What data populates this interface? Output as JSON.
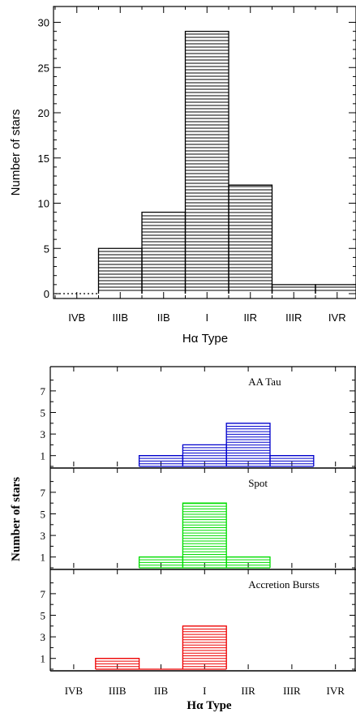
{
  "chart_data": [
    {
      "type": "bar",
      "categories": [
        "IVB",
        "IIIB",
        "IIB",
        "I",
        "IIR",
        "IIIR",
        "IVR"
      ],
      "values": [
        0,
        5,
        9,
        29,
        12,
        1,
        1
      ],
      "xlabel": "Hα  Type",
      "ylabel": "Number of stars",
      "ylim": [
        0,
        30
      ],
      "yticks": [
        0,
        5,
        10,
        15,
        20,
        25,
        30
      ],
      "color": "#000000",
      "fill": "horizontal-hatch"
    },
    {
      "type": "bar",
      "categories": [
        "IVB",
        "IIIB",
        "IIB",
        "I",
        "IIR",
        "IIIR",
        "IVR"
      ],
      "xlabel": "Hα  Type",
      "ylabel": "Number of stars",
      "ylim": [
        0,
        8
      ],
      "yticks": [
        1,
        3,
        5,
        7
      ],
      "panels": [
        {
          "annotation": "AA Tau",
          "color": "#0000cc",
          "values": [
            0,
            0,
            1,
            2,
            4,
            1,
            0
          ]
        },
        {
          "annotation": "Spot",
          "color": "#00dd00",
          "values": [
            0,
            0,
            1,
            6,
            1,
            0,
            0
          ]
        },
        {
          "annotation": "Accretion Bursts",
          "color": "#ee0000",
          "values": [
            0,
            1,
            0,
            4,
            0,
            0,
            0
          ]
        }
      ]
    }
  ]
}
